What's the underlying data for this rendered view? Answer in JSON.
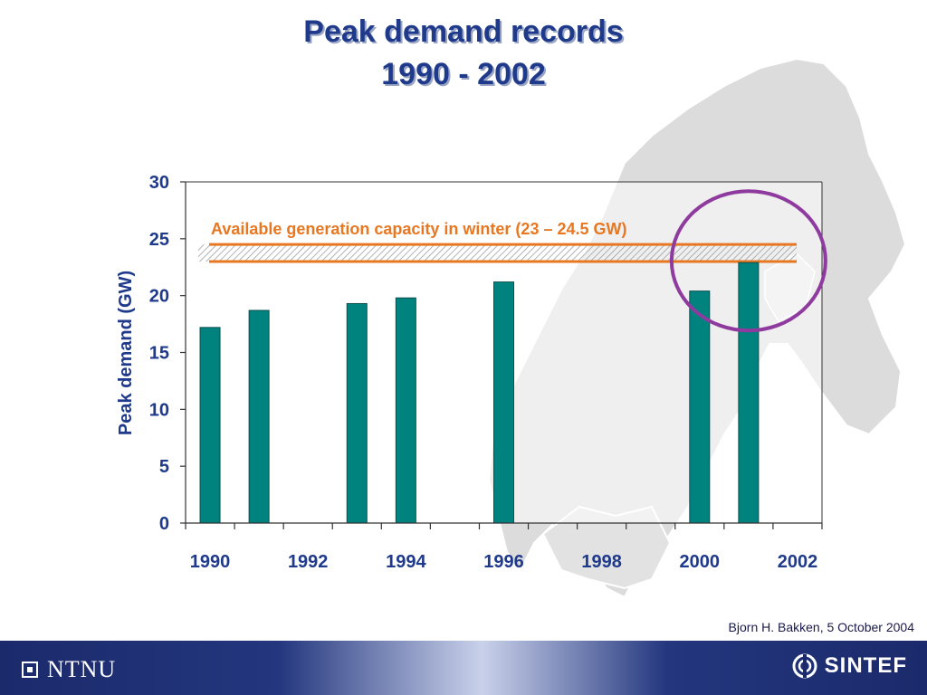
{
  "slide": {
    "title_line1": "Peak demand records",
    "title_line2": "1990 - 2002",
    "author": "Bjorn H. Bakken, 5 October 2004"
  },
  "footer": {
    "left_logo": "NTNU",
    "right_logo": "SINTEF"
  },
  "colors": {
    "title": "#1f3a8a",
    "bar": "#00837f",
    "capacity_line": "#e87722",
    "highlight_circle": "#8e3a9e",
    "axis_text": "#1f3a8a",
    "map": "#d9d9d9"
  },
  "chart_data": {
    "type": "bar",
    "title": "",
    "xlabel": "",
    "ylabel": "Peak demand (GW)",
    "ylim": [
      0,
      30
    ],
    "yticks": [
      0,
      5,
      10,
      15,
      20,
      25,
      30
    ],
    "x_tick_labels": [
      "1990",
      "1992",
      "1994",
      "1996",
      "1998",
      "2000",
      "2002"
    ],
    "categories": [
      "1990",
      "1991",
      "1992",
      "1993",
      "1994",
      "1995",
      "1996",
      "1997",
      "1998",
      "1999",
      "2000",
      "2001",
      "2002"
    ],
    "values": [
      17.2,
      18.7,
      null,
      19.3,
      19.8,
      null,
      21.2,
      null,
      null,
      null,
      20.4,
      22.9,
      null
    ],
    "annotation": {
      "text": "Available generation capacity in winter (23 – 24.5 GW)",
      "band": [
        23,
        24.5
      ]
    },
    "highlight": "2001",
    "grid": false,
    "legend": "none"
  }
}
